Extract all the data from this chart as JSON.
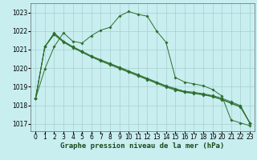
{
  "x": [
    0,
    1,
    2,
    3,
    4,
    5,
    6,
    7,
    8,
    9,
    10,
    11,
    12,
    13,
    14,
    15,
    16,
    17,
    18,
    19,
    20,
    21,
    22,
    23
  ],
  "s1": [
    1018.35,
    1019.95,
    1021.15,
    1021.9,
    1021.45,
    1021.35,
    1021.75,
    1022.05,
    1022.2,
    1022.8,
    1023.05,
    1022.9,
    1022.8,
    1022.0,
    1021.4,
    1019.5,
    1019.25,
    1019.15,
    1019.05,
    1018.85,
    1018.5,
    1017.2,
    1017.05,
    1016.9
  ],
  "s2": [
    1018.35,
    1021.15,
    1021.9,
    1021.45,
    1021.15,
    1020.9,
    1020.65,
    1020.45,
    1020.25,
    1020.05,
    1019.85,
    1019.65,
    1019.45,
    1019.25,
    1019.05,
    1018.9,
    1018.75,
    1018.7,
    1018.62,
    1018.52,
    1018.38,
    1018.18,
    1017.98,
    1017.05
  ],
  "s3": [
    1018.35,
    1021.15,
    1021.85,
    1021.45,
    1021.15,
    1020.9,
    1020.65,
    1020.42,
    1020.22,
    1020.02,
    1019.82,
    1019.62,
    1019.42,
    1019.22,
    1019.02,
    1018.85,
    1018.72,
    1018.65,
    1018.58,
    1018.48,
    1018.32,
    1018.12,
    1017.92,
    1017.05
  ],
  "s4": [
    1018.35,
    1021.15,
    1021.8,
    1021.4,
    1021.1,
    1020.85,
    1020.6,
    1020.38,
    1020.18,
    1019.98,
    1019.78,
    1019.58,
    1019.38,
    1019.18,
    1018.98,
    1018.82,
    1018.7,
    1018.63,
    1018.56,
    1018.46,
    1018.3,
    1018.1,
    1017.9,
    1017.05
  ],
  "line_color": "#2d6e2d",
  "marker": "D",
  "marker_size": 1.8,
  "bg_color": "#c8eef0",
  "grid_color": "#a8d0d0",
  "ylabel_values": [
    1017,
    1018,
    1019,
    1020,
    1021,
    1022,
    1023
  ],
  "xlabel": "Graphe pression niveau de la mer (hPa)",
  "xlabel_fontsize": 6.5,
  "tick_fontsize": 5.5,
  "ylim": [
    1016.6,
    1023.5
  ],
  "xlim": [
    -0.5,
    23.5
  ]
}
